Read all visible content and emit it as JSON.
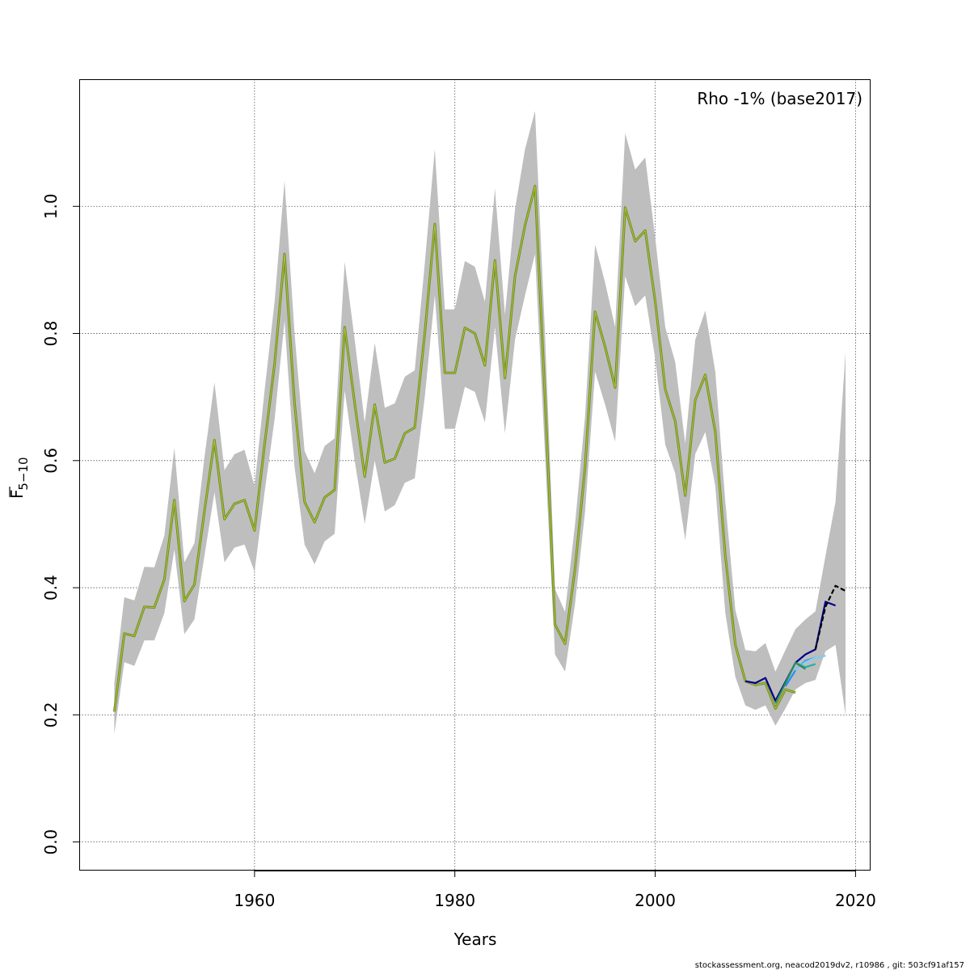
{
  "chart_data": {
    "type": "line",
    "xlabel": "Years",
    "ylabel_main": "F",
    "ylabel_sub": "5−10",
    "annotation": "Rho -1% (base2017)",
    "credit": "stockassessment.org, neacod2019dv2, r10986 , git: 503cf91af157",
    "xlim": [
      1942.5,
      2021.5
    ],
    "ylim": [
      -0.045,
      1.2
    ],
    "x_ticks": [
      1960,
      1980,
      2000,
      2020
    ],
    "y_ticks": [
      0.0,
      0.2,
      0.4,
      0.6,
      0.8,
      1.0
    ],
    "grid": true,
    "band_color": "#bebebe",
    "base_series": {
      "name": "base2017",
      "color": "#6b8e23",
      "x": [
        1946,
        1947,
        1948,
        1949,
        1950,
        1951,
        1952,
        1953,
        1954,
        1955,
        1956,
        1957,
        1958,
        1959,
        1960,
        1961,
        1962,
        1963,
        1964,
        1965,
        1966,
        1967,
        1968,
        1969,
        1970,
        1971,
        1972,
        1973,
        1974,
        1975,
        1976,
        1977,
        1978,
        1979,
        1980,
        1981,
        1982,
        1983,
        1984,
        1985,
        1986,
        1987,
        1988,
        1989,
        1990,
        1991,
        1992,
        1993,
        1994,
        1995,
        1996,
        1997,
        1998,
        1999,
        2000,
        2001,
        2002,
        2003,
        2004,
        2005,
        2006,
        2007,
        2008,
        2009,
        2010,
        2011,
        2012,
        2013,
        2014
      ],
      "y": [
        0.205,
        0.328,
        0.324,
        0.37,
        0.369,
        0.413,
        0.538,
        0.379,
        0.405,
        0.52,
        0.632,
        0.508,
        0.532,
        0.538,
        0.49,
        0.625,
        0.752,
        0.925,
        0.69,
        0.535,
        0.503,
        0.542,
        0.554,
        0.81,
        0.69,
        0.575,
        0.688,
        0.597,
        0.603,
        0.643,
        0.652,
        0.8,
        0.972,
        0.738,
        0.738,
        0.809,
        0.8,
        0.75,
        0.915,
        0.73,
        0.89,
        0.97,
        1.032,
        0.7,
        0.342,
        0.312,
        0.43,
        0.59,
        0.834,
        0.779,
        0.715,
        0.998,
        0.945,
        0.962,
        0.85,
        0.712,
        0.662,
        0.545,
        0.695,
        0.735,
        0.645,
        0.45,
        0.31,
        0.253,
        0.247,
        0.25,
        0.21,
        0.24,
        0.235
      ]
    },
    "ci_band": {
      "x": [
        1946,
        1947,
        1948,
        1949,
        1950,
        1951,
        1952,
        1953,
        1954,
        1955,
        1956,
        1957,
        1958,
        1959,
        1960,
        1961,
        1962,
        1963,
        1964,
        1965,
        1966,
        1967,
        1968,
        1969,
        1970,
        1971,
        1972,
        1973,
        1974,
        1975,
        1976,
        1977,
        1978,
        1979,
        1980,
        1981,
        1982,
        1983,
        1984,
        1985,
        1986,
        1987,
        1988,
        1989,
        1990,
        1991,
        1992,
        1993,
        1994,
        1995,
        1996,
        1997,
        1998,
        1999,
        2000,
        2001,
        2002,
        2003,
        2004,
        2005,
        2006,
        2007,
        2008,
        2009,
        2010,
        2011,
        2012,
        2013,
        2014,
        2015,
        2016,
        2017,
        2018,
        2019
      ],
      "lower": [
        0.17,
        0.283,
        0.277,
        0.317,
        0.317,
        0.36,
        0.46,
        0.327,
        0.35,
        0.45,
        0.55,
        0.44,
        0.463,
        0.468,
        0.425,
        0.55,
        0.665,
        0.82,
        0.59,
        0.468,
        0.437,
        0.473,
        0.485,
        0.71,
        0.6,
        0.5,
        0.6,
        0.52,
        0.53,
        0.565,
        0.572,
        0.7,
        0.86,
        0.65,
        0.65,
        0.716,
        0.708,
        0.66,
        0.81,
        0.643,
        0.79,
        0.86,
        0.925,
        0.61,
        0.295,
        0.268,
        0.375,
        0.52,
        0.74,
        0.688,
        0.63,
        0.89,
        0.843,
        0.86,
        0.76,
        0.625,
        0.58,
        0.475,
        0.61,
        0.645,
        0.56,
        0.36,
        0.26,
        0.215,
        0.208,
        0.215,
        0.183,
        0.21,
        0.24,
        0.25,
        0.255,
        0.3,
        0.31,
        0.2
      ],
      "upper": [
        0.25,
        0.385,
        0.38,
        0.433,
        0.432,
        0.482,
        0.62,
        0.44,
        0.47,
        0.605,
        0.723,
        0.585,
        0.61,
        0.617,
        0.56,
        0.71,
        0.85,
        1.04,
        0.8,
        0.615,
        0.58,
        0.623,
        0.635,
        0.913,
        0.79,
        0.66,
        0.785,
        0.683,
        0.69,
        0.732,
        0.742,
        0.91,
        1.09,
        0.838,
        0.838,
        0.914,
        0.905,
        0.85,
        1.028,
        0.83,
        0.995,
        1.09,
        1.15,
        0.8,
        0.398,
        0.362,
        0.5,
        0.67,
        0.94,
        0.88,
        0.81,
        1.115,
        1.058,
        1.077,
        0.95,
        0.81,
        0.755,
        0.627,
        0.79,
        0.836,
        0.74,
        0.535,
        0.365,
        0.302,
        0.3,
        0.313,
        0.268,
        0.302,
        0.335,
        0.35,
        0.363,
        0.45,
        0.535,
        0.77
      ]
    },
    "retro_series": [
      {
        "color": "#00008b",
        "x": [
          2009,
          2010,
          2011,
          2012,
          2013,
          2014,
          2015,
          2016,
          2017,
          2018
        ],
        "y": [
          0.253,
          0.25,
          0.258,
          0.222,
          0.252,
          0.282,
          0.295,
          0.303,
          0.378,
          0.372
        ]
      },
      {
        "color": "#1e90ff",
        "x": [
          2013,
          2014,
          2015,
          2016,
          2017
        ],
        "y": [
          0.245,
          0.27,
          0.285,
          0.29,
          0.293
        ]
      },
      {
        "color": "#87ceeb",
        "x": [
          2014,
          2015,
          2016,
          2017
        ],
        "y": [
          0.27,
          0.283,
          0.29,
          0.293
        ]
      },
      {
        "color": "#20b2aa",
        "x": [
          2013,
          2014,
          2015,
          2016
        ],
        "y": [
          0.25,
          0.282,
          0.275,
          0.28
        ]
      },
      {
        "color": "#2e8b57",
        "x": [
          2012,
          2013,
          2014,
          2015
        ],
        "y": [
          0.218,
          0.25,
          0.282,
          0.272
        ]
      },
      {
        "color": "#000000",
        "x": [
          2016,
          2017,
          2018,
          2019
        ],
        "y": [
          0.303,
          0.37,
          0.403,
          0.395
        ]
      }
    ]
  }
}
